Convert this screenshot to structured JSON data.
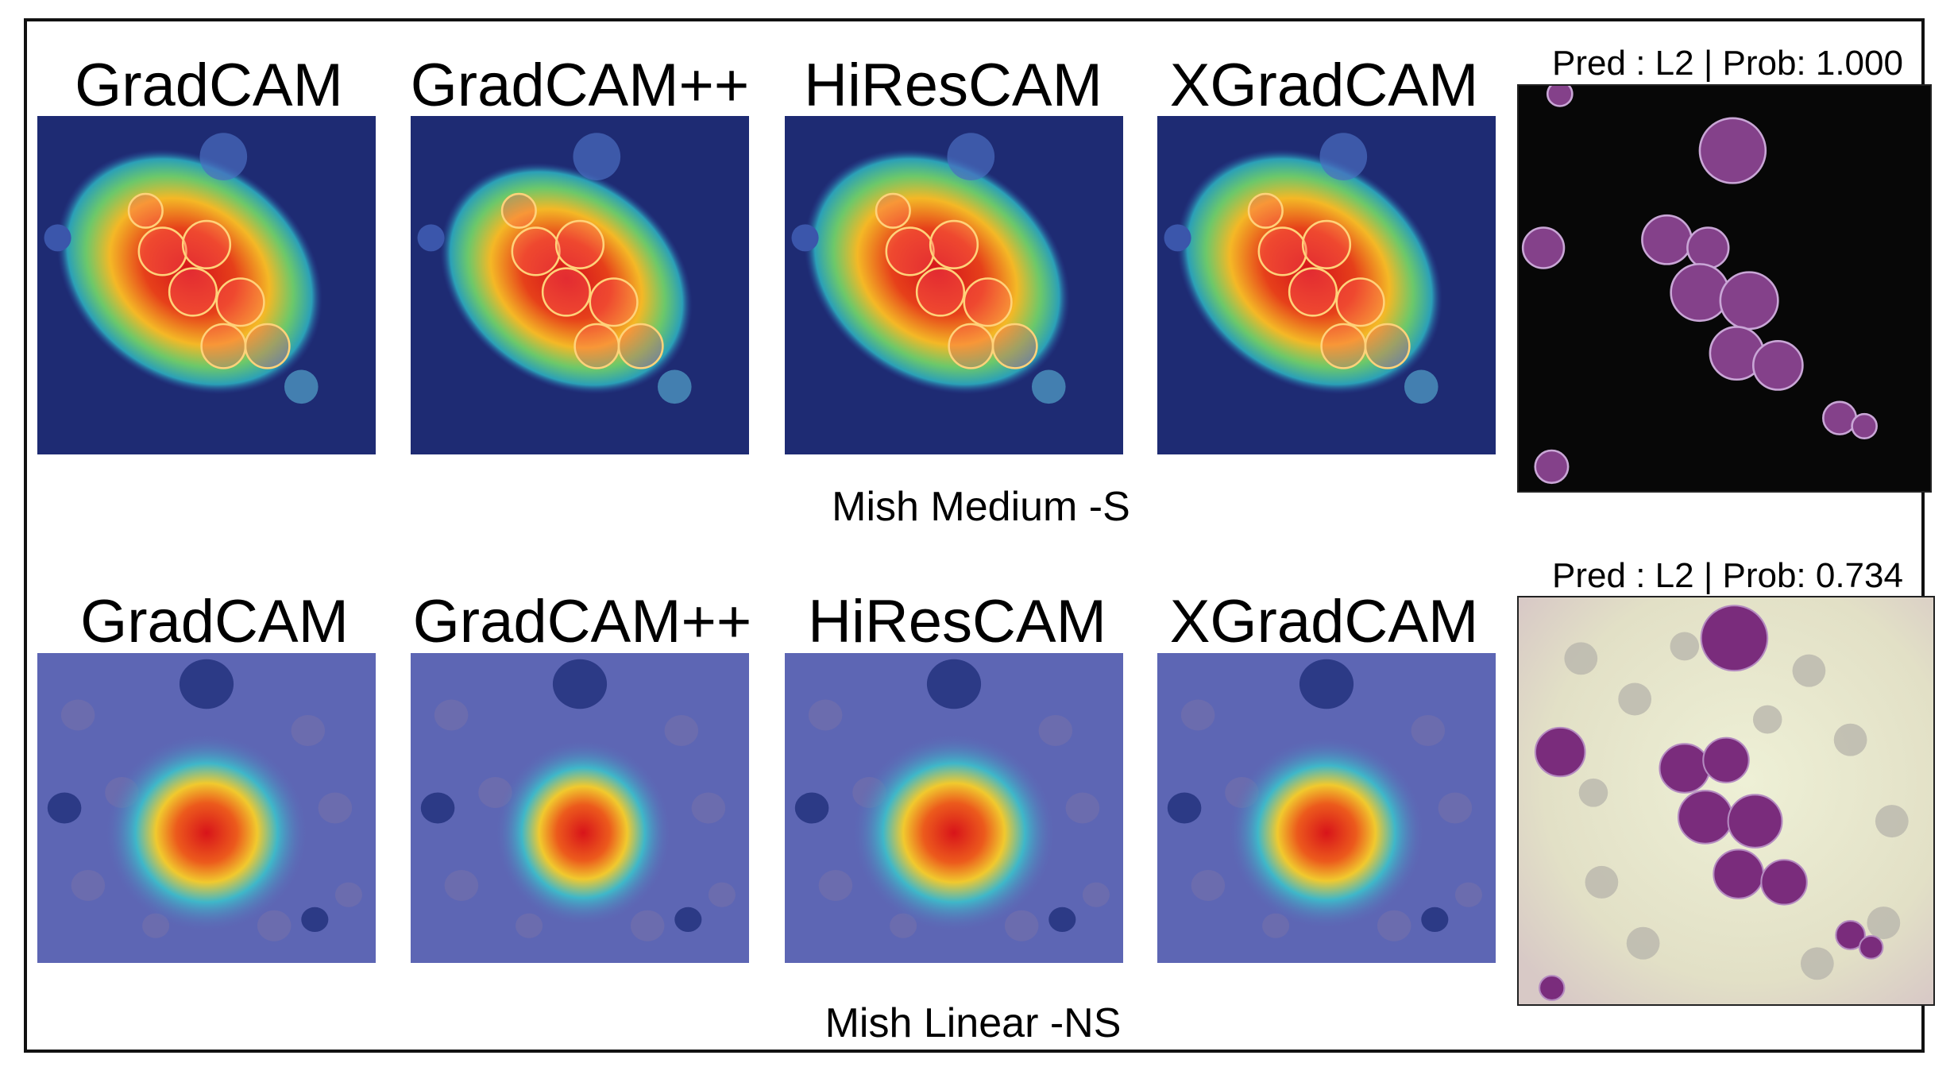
{
  "rows": [
    {
      "caption": "Mish Medium -S",
      "methods": [
        "GradCAM",
        "GradCAM++",
        "HiResCAM",
        "XGradCAM"
      ],
      "prediction": "Pred : L2 | Prob: 1.000"
    },
    {
      "caption": "Mish Linear -NS",
      "methods": [
        "GradCAM",
        "GradCAM++",
        "HiResCAM",
        "XGradCAM"
      ],
      "prediction": "Pred : L2 | Prob: 0.734"
    }
  ],
  "colors": {
    "heat_bg_dark": "#1c2a6e",
    "heat_bg_light": "#5d69b8",
    "hot_core": "#e0201c",
    "warm": "#f3b224",
    "cool": "#2aa6b8",
    "cell_purple": "#7a2c7c",
    "smear_bg": "#e4e3c8"
  }
}
